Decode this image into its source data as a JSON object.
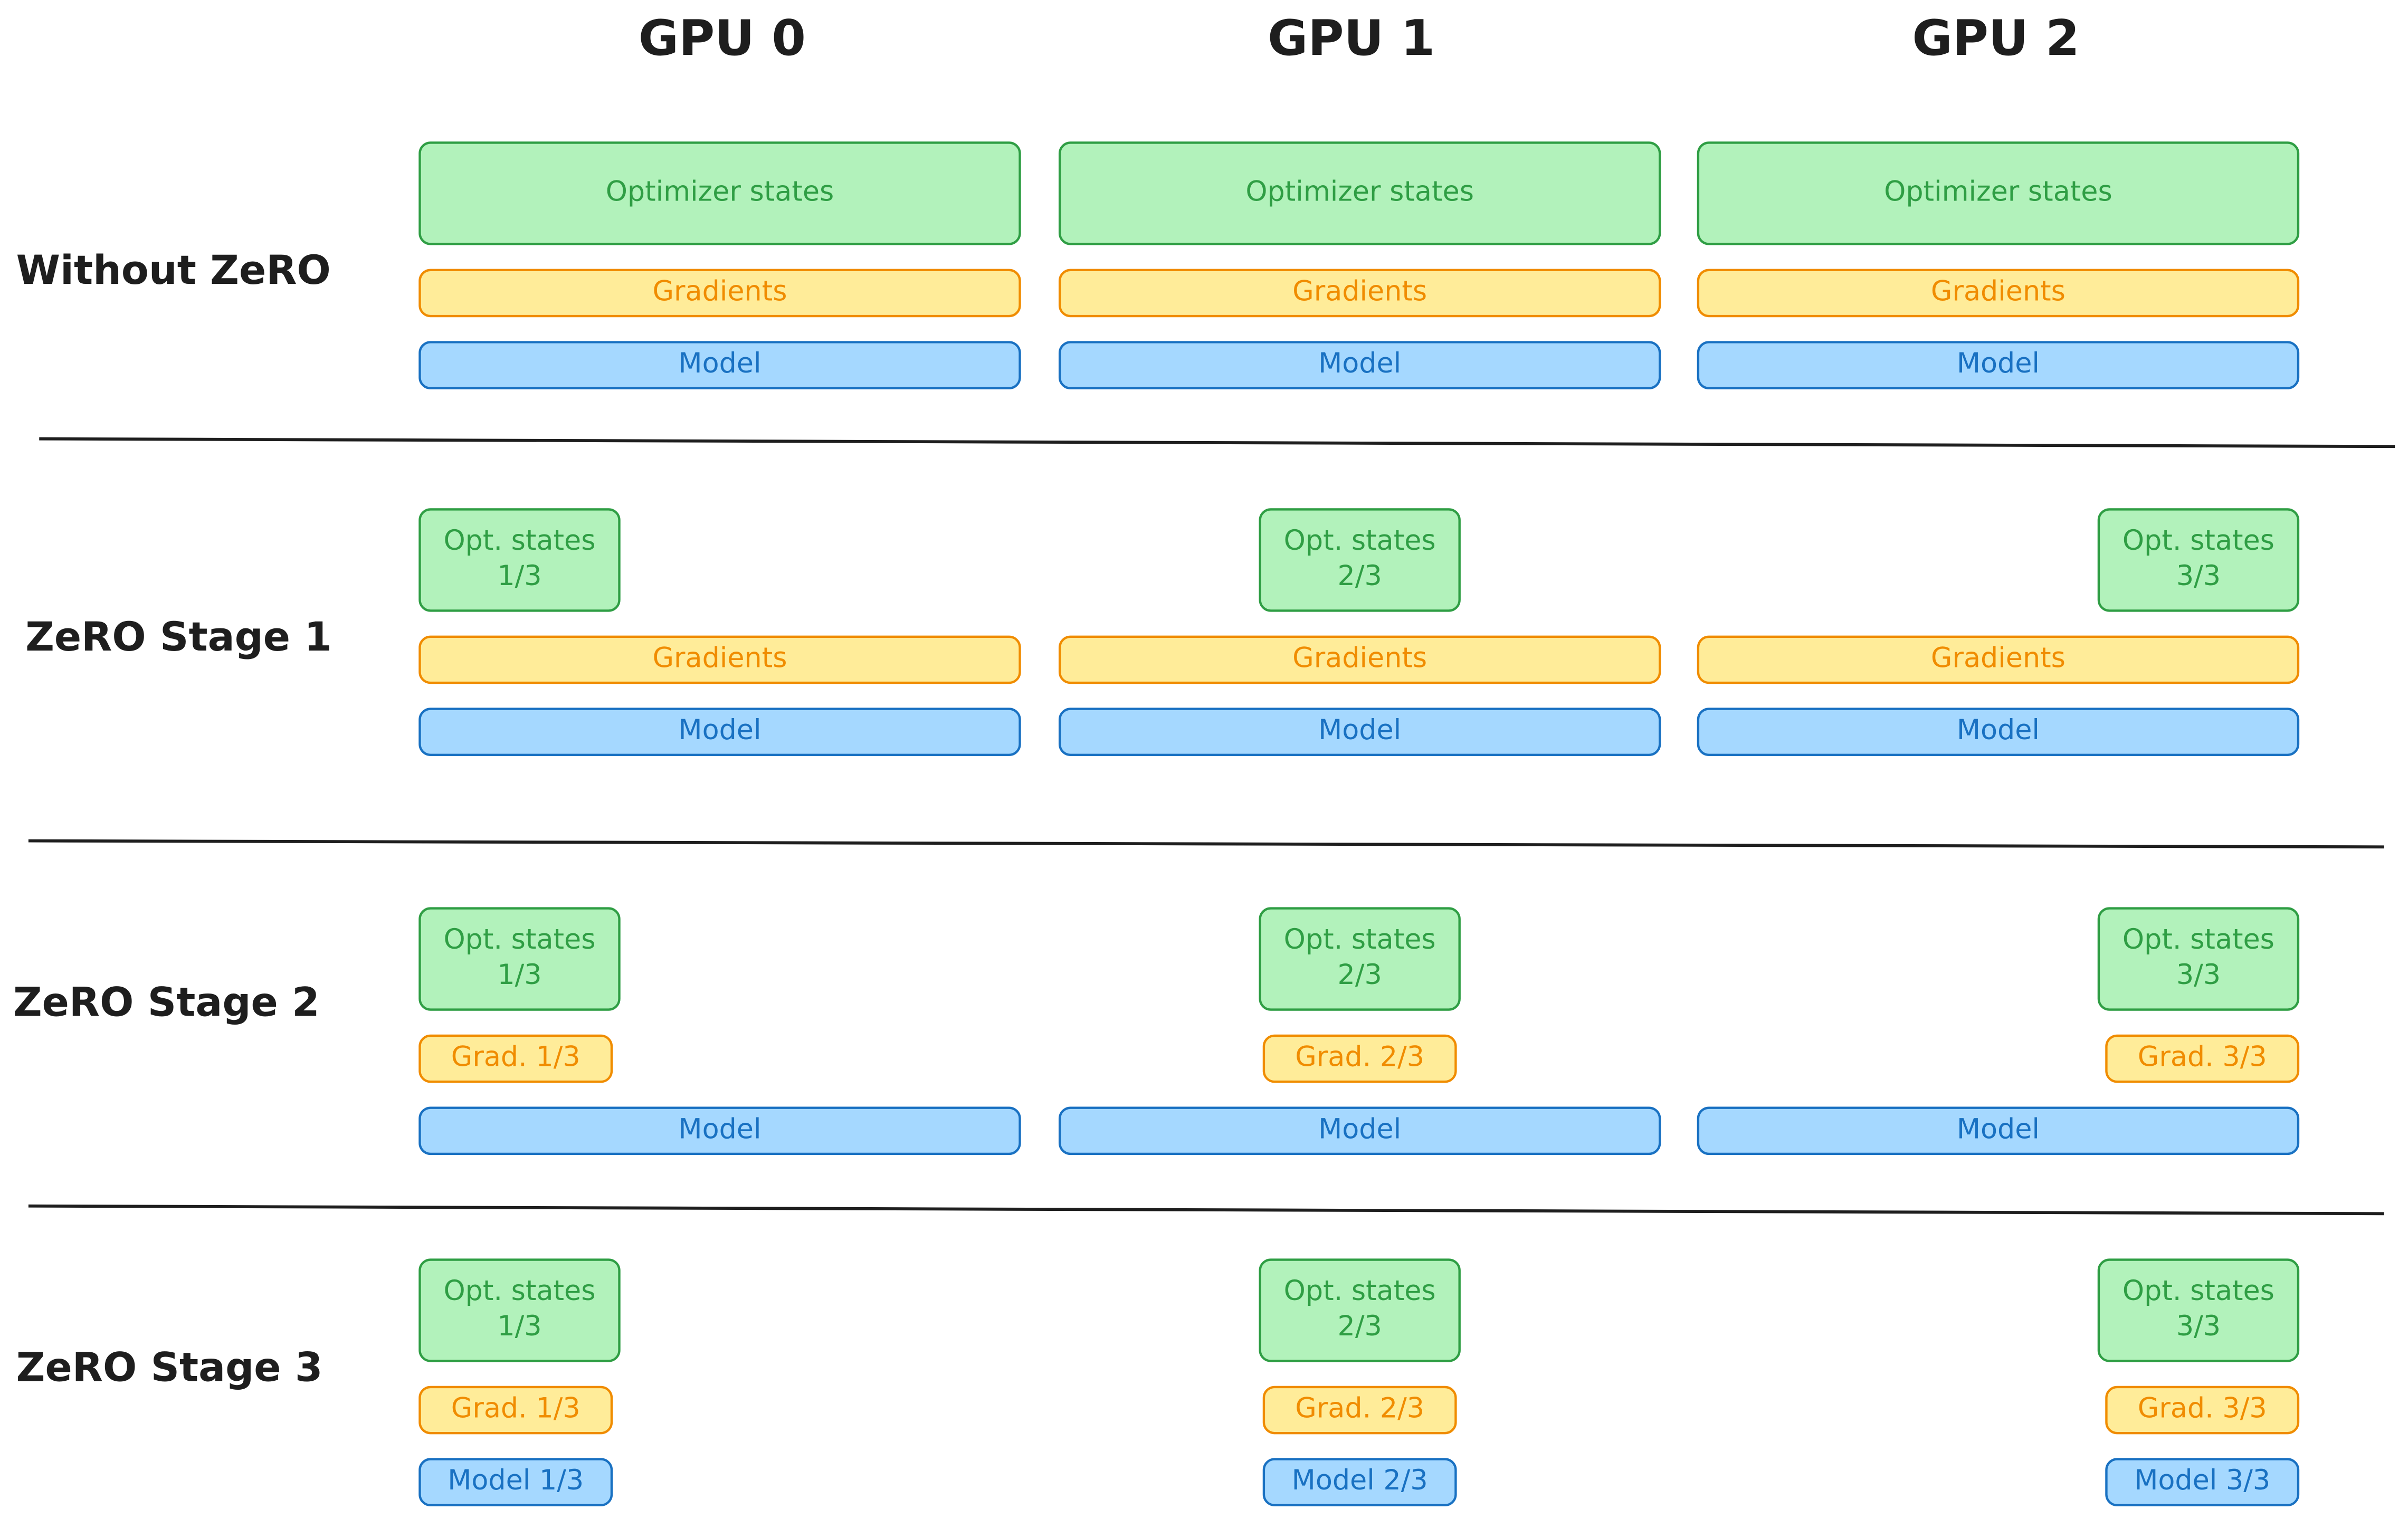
{
  "columns": [
    "GPU 0",
    "GPU 1",
    "GPU 2"
  ],
  "rows": [
    {
      "label": "Without ZeRO",
      "cells": [
        {
          "optimizer": [
            "Optimizer states"
          ],
          "gradients": "Gradients",
          "model": "Model"
        },
        {
          "optimizer": [
            "Optimizer states"
          ],
          "gradients": "Gradients",
          "model": "Model"
        },
        {
          "optimizer": [
            "Optimizer states"
          ],
          "gradients": "Gradients",
          "model": "Model"
        }
      ]
    },
    {
      "label": "ZeRO Stage 1",
      "cells": [
        {
          "optimizer": [
            "Opt. states",
            "1/3"
          ],
          "gradients": "Gradients",
          "model": "Model"
        },
        {
          "optimizer": [
            "Opt. states",
            "2/3"
          ],
          "gradients": "Gradients",
          "model": "Model"
        },
        {
          "optimizer": [
            "Opt. states",
            "3/3"
          ],
          "gradients": "Gradients",
          "model": "Model"
        }
      ]
    },
    {
      "label": "ZeRO Stage 2",
      "cells": [
        {
          "optimizer": [
            "Opt. states",
            "1/3"
          ],
          "gradients": "Grad. 1/3",
          "model": "Model"
        },
        {
          "optimizer": [
            "Opt. states",
            "2/3"
          ],
          "gradients": "Grad. 2/3",
          "model": "Model"
        },
        {
          "optimizer": [
            "Opt. states",
            "3/3"
          ],
          "gradients": "Grad. 3/3",
          "model": "Model"
        }
      ]
    },
    {
      "label": "ZeRO Stage 3",
      "cells": [
        {
          "optimizer": [
            "Opt. states",
            "1/3"
          ],
          "gradients": "Grad. 1/3",
          "model": "Model 1/3"
        },
        {
          "optimizer": [
            "Opt. states",
            "2/3"
          ],
          "gradients": "Grad. 2/3",
          "model": "Model 2/3"
        },
        {
          "optimizer": [
            "Opt. states",
            "3/3"
          ],
          "gradients": "Grad. 3/3",
          "model": "Model 3/3"
        }
      ]
    }
  ]
}
